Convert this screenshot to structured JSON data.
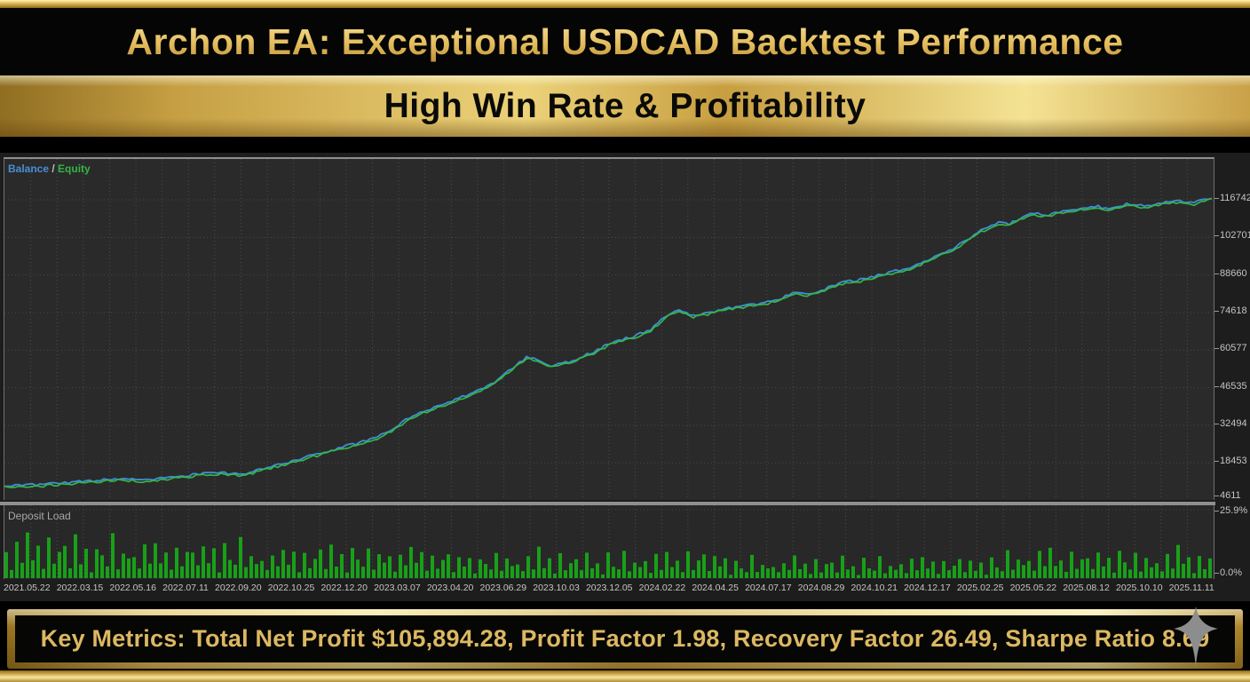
{
  "header": {
    "title": "Archon EA: Exceptional USDCAD Backtest Performance",
    "subtitle": "High Win Rate & Profitability"
  },
  "chart": {
    "legend": {
      "balance_label": "Balance",
      "separator": " / ",
      "equity_label": "Equity"
    },
    "deposit_load_label": "Deposit Load",
    "y_axis_labels": [
      "116742",
      "102701",
      "88660",
      "74618",
      "60577",
      "46535",
      "32494",
      "18453",
      "4611"
    ],
    "load_axis": {
      "max_label": "25.9%",
      "min_label": "0.0%"
    },
    "x_axis_dates": [
      "2021.05.22",
      "2022.03.15",
      "2022.05.16",
      "2022.07.11",
      "2022.09.20",
      "2022.10.25",
      "2022.12.20",
      "2023.03.07",
      "2023.04.20",
      "2023.06.29",
      "2023.10.03",
      "2023.12.05",
      "2024.02.22",
      "2024.04.25",
      "2024.07.17",
      "2024.08.29",
      "2024.10.21",
      "2024.12.17",
      "2025.02.25",
      "2025.05.22",
      "2025.08.12",
      "2025.10.10",
      "2025.11.11"
    ]
  },
  "chart_data": [
    {
      "type": "line",
      "title": "Balance / Equity",
      "ylim": [
        4611,
        132000
      ],
      "y_ticks": [
        116742,
        102701,
        88660,
        74618,
        60577,
        46535,
        32494,
        18453
      ],
      "grid": true,
      "legend_position": "top-left",
      "series": [
        {
          "name": "Balance",
          "color": "#3f8fd6",
          "x_frac": [
            0,
            0.029,
            0.066,
            0.095,
            0.117,
            0.146,
            0.175,
            0.197,
            0.219,
            0.249,
            0.278,
            0.292,
            0.307,
            0.322,
            0.336,
            0.351,
            0.366,
            0.38,
            0.395,
            0.409,
            0.42,
            0.433,
            0.442,
            0.452,
            0.462,
            0.475,
            0.49,
            0.504,
            0.519,
            0.534,
            0.548,
            0.559,
            0.57,
            0.581,
            0.596,
            0.61,
            0.625,
            0.64,
            0.653,
            0.665,
            0.68,
            0.694,
            0.709,
            0.724,
            0.738,
            0.753,
            0.768,
            0.782,
            0.797,
            0.804,
            0.815,
            0.822,
            0.83,
            0.841,
            0.852,
            0.863,
            0.874,
            0.888,
            0.903,
            0.914,
            0.928,
            0.943,
            0.958,
            0.972,
            0.983,
            0.994,
            1.0
          ],
          "values": [
            9600,
            9900,
            11200,
            12200,
            11600,
            13200,
            14500,
            13900,
            16500,
            20200,
            23800,
            25500,
            27400,
            30800,
            35400,
            38000,
            40300,
            43000,
            46000,
            49300,
            53600,
            57900,
            56200,
            54200,
            55200,
            57200,
            60200,
            63500,
            65100,
            67800,
            73400,
            75100,
            73100,
            74100,
            75700,
            76700,
            77700,
            79000,
            81700,
            81000,
            83300,
            85600,
            86600,
            88300,
            89900,
            91600,
            94900,
            97500,
            101500,
            104200,
            106500,
            108100,
            107100,
            109800,
            111400,
            110500,
            112100,
            113100,
            114100,
            112800,
            114700,
            114100,
            115400,
            116100,
            115100,
            116700,
            117400
          ]
        },
        {
          "name": "Equity",
          "color": "#35b546",
          "note": "overlaps Balance curve"
        }
      ]
    },
    {
      "type": "bar",
      "title": "Deposit Load",
      "ylim_pct": [
        0,
        25.9
      ],
      "color": "#18a018",
      "bar_pattern_pct": [
        32,
        13,
        45,
        20,
        57,
        24,
        38,
        11,
        50,
        17,
        33,
        42,
        15,
        52,
        22,
        36,
        9,
        47,
        27,
        18,
        57,
        14,
        35,
        24
      ],
      "segments": [
        {
          "count": 46,
          "scale": 1.0
        },
        {
          "count": 34,
          "scale": 0.82
        },
        {
          "count": 56,
          "scale": 0.66
        },
        {
          "count": 52,
          "scale": 0.55
        },
        {
          "count": 40,
          "scale": 0.72
        }
      ]
    }
  ],
  "footer": {
    "metrics_text": "Key Metrics: Total Net Profit $105,894.28, Profit Factor 1.98, Recovery Factor 26.49, Sharpe Ratio 8.69"
  },
  "colors": {
    "gold_accent": "#e3bb5c",
    "balance_line": "#3f8fd6",
    "equity_line": "#35b546",
    "deposit_bars": "#18a018",
    "chart_bg": "#2a2a2a",
    "grid": "#4c4c4c"
  }
}
